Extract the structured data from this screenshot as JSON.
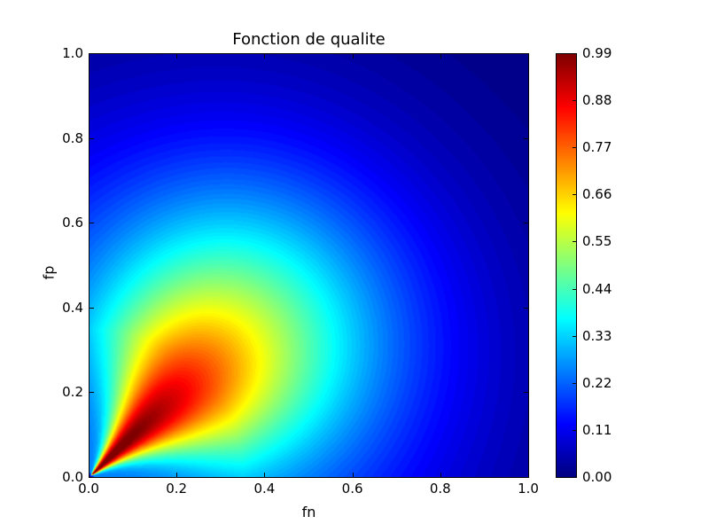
{
  "chart_data": {
    "type": "heatmap",
    "title": "Fonction de qualite",
    "xlabel": "fn",
    "ylabel": "fp",
    "xlim": [
      0.0,
      1.0
    ],
    "ylim": [
      0.0,
      1.0
    ],
    "x_ticks": [
      "0.0",
      "0.2",
      "0.4",
      "0.6",
      "0.8",
      "1.0"
    ],
    "y_ticks": [
      "0.0",
      "0.2",
      "0.4",
      "0.6",
      "0.8",
      "1.0"
    ],
    "colormap": "jet",
    "colorbar": {
      "vmin": 0.0,
      "vmax": 0.99,
      "ticks": [
        "0.00",
        "0.11",
        "0.22",
        "0.33",
        "0.44",
        "0.55",
        "0.66",
        "0.77",
        "0.88",
        "0.99"
      ]
    },
    "grid": false
  }
}
